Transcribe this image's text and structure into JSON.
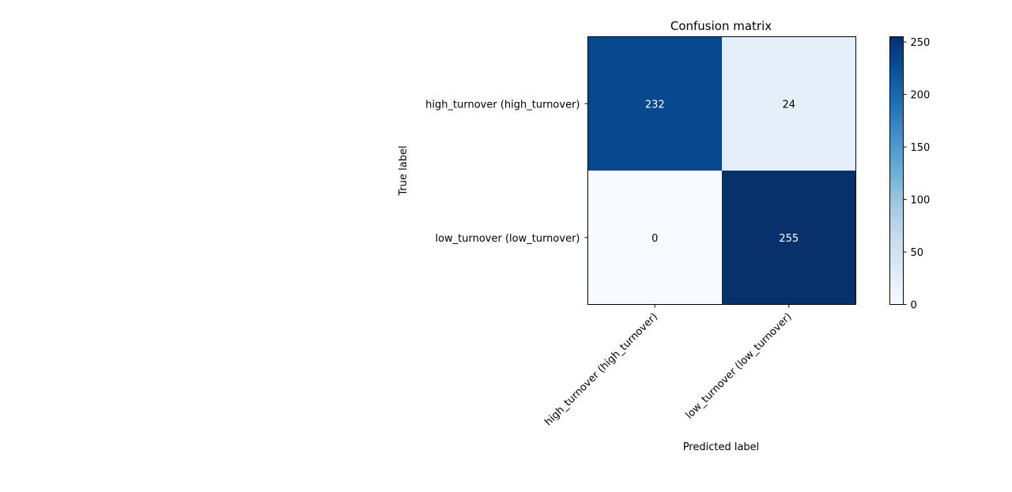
{
  "chart_data": {
    "type": "heatmap",
    "title": "Confusion matrix",
    "xlabel": "Predicted label",
    "ylabel": "True label",
    "x_categories": [
      "high_turnover (high_turnover)",
      "low_turnover (low_turnover)"
    ],
    "y_categories": [
      "high_turnover (high_turnover)",
      "low_turnover (low_turnover)"
    ],
    "values": [
      [
        232,
        24
      ],
      [
        0,
        255
      ]
    ],
    "colormap": "Blues",
    "colorbar": {
      "range": [
        0,
        255
      ],
      "ticks": [
        0,
        50,
        100,
        150,
        200,
        250
      ]
    },
    "grid": false
  }
}
